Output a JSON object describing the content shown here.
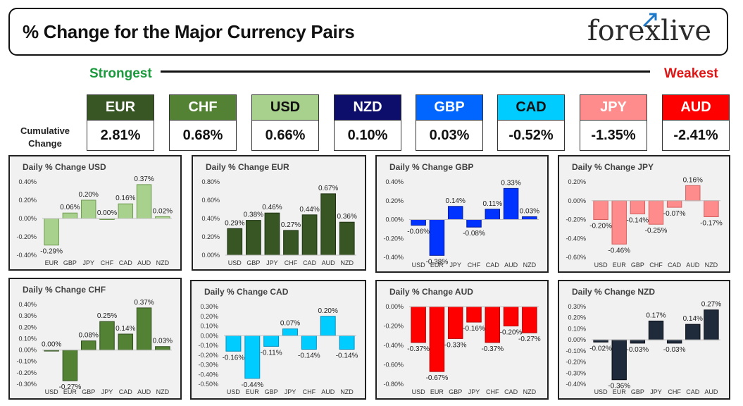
{
  "header": {
    "title": "% Change for the Major Currency Pairs",
    "logo": "forexlive"
  },
  "scale": {
    "strongest": "Strongest",
    "weakest": "Weakest"
  },
  "cumulative": {
    "label_line1": "Cumulative",
    "label_line2": "Change",
    "currencies": [
      {
        "name": "EUR",
        "value": "2.81%",
        "bg": "#375623",
        "fg": "#ffffff"
      },
      {
        "name": "CHF",
        "value": "0.68%",
        "bg": "#548235",
        "fg": "#ffffff"
      },
      {
        "name": "USD",
        "value": "0.66%",
        "bg": "#a9d18e",
        "fg": "#111111"
      },
      {
        "name": "NZD",
        "value": "0.10%",
        "bg": "#0d0d6b",
        "fg": "#ffffff"
      },
      {
        "name": "GBP",
        "value": "0.03%",
        "bg": "#0066ff",
        "fg": "#ffffff"
      },
      {
        "name": "CAD",
        "value": "-0.52%",
        "bg": "#00ccff",
        "fg": "#111111"
      },
      {
        "name": "JPY",
        "value": "-1.35%",
        "bg": "#ff8c8c",
        "fg": "#ffffff"
      },
      {
        "name": "AUD",
        "value": "-2.41%",
        "bg": "#ff0000",
        "fg": "#ffffff"
      }
    ]
  },
  "chart_data": [
    {
      "type": "bar",
      "title": "Daily % Change USD",
      "categories": [
        "EUR",
        "GBP",
        "JPY",
        "CHF",
        "CAD",
        "AUD",
        "NZD"
      ],
      "values": [
        -0.29,
        0.06,
        0.2,
        0.0,
        0.16,
        0.37,
        0.02
      ],
      "labels": [
        "-0.29%",
        "0.06%",
        "0.20%",
        "0.00%",
        "0.16%",
        "0.37%",
        "0.02%"
      ],
      "yticks": [
        0.4,
        0.2,
        0.0,
        -0.2,
        -0.4
      ],
      "ytick_labels": [
        "0.40%",
        "0.20%",
        "0.00%",
        "-0.20%",
        "-0.40%"
      ],
      "ylim": [
        -0.4,
        0.4
      ],
      "color": "#a9d18e",
      "edge": "#6f9a52",
      "grid": false
    },
    {
      "type": "bar",
      "title": "Daily % Change EUR",
      "categories": [
        "USD",
        "GBP",
        "JPY",
        "CHF",
        "CAD",
        "AUD",
        "NZD"
      ],
      "values": [
        0.29,
        0.38,
        0.46,
        0.27,
        0.44,
        0.67,
        0.36
      ],
      "labels": [
        "0.29%",
        "0.38%",
        "0.46%",
        "0.27%",
        "0.44%",
        "0.67%",
        "0.36%"
      ],
      "yticks": [
        0.8,
        0.6,
        0.4,
        0.2,
        0.0
      ],
      "ytick_labels": [
        "0.80%",
        "0.60%",
        "0.40%",
        "0.20%",
        "0.00%"
      ],
      "ylim": [
        0,
        0.8
      ],
      "color": "#375623",
      "edge": "#1e3312",
      "grid": false
    },
    {
      "type": "bar",
      "title": "Daily % Change GBP",
      "categories": [
        "USD",
        "EUR",
        "JPY",
        "CHF",
        "CAD",
        "AUD",
        "NZD"
      ],
      "values": [
        -0.06,
        -0.38,
        0.14,
        -0.08,
        0.11,
        0.33,
        0.03
      ],
      "labels": [
        "-0.06%",
        "-0.38%",
        "0.14%",
        "-0.08%",
        "0.11%",
        "0.33%",
        "0.03%"
      ],
      "yticks": [
        0.4,
        0.2,
        0.0,
        -0.2,
        -0.4
      ],
      "ytick_labels": [
        "0.40%",
        "0.20%",
        "0.00%",
        "-0.20%",
        "-0.40%"
      ],
      "ylim": [
        -0.4,
        0.4
      ],
      "color": "#0033ff",
      "edge": "#001a99",
      "grid": false
    },
    {
      "type": "bar",
      "title": "Daily % Change JPY",
      "categories": [
        "USD",
        "EUR",
        "GBP",
        "CHF",
        "CAD",
        "AUD",
        "NZD"
      ],
      "values": [
        -0.2,
        -0.46,
        -0.14,
        -0.25,
        -0.07,
        0.16,
        -0.17
      ],
      "labels": [
        "-0.20%",
        "-0.46%",
        "-0.14%",
        "-0.25%",
        "-0.07%",
        "0.16%",
        "-0.17%"
      ],
      "yticks": [
        0.2,
        0.0,
        -0.2,
        -0.4,
        -0.6
      ],
      "ytick_labels": [
        "0.20%",
        "0.00%",
        "-0.20%",
        "-0.40%",
        "-0.60%"
      ],
      "ylim": [
        -0.6,
        0.2
      ],
      "color": "#ff8c8c",
      "edge": "#d45f5f",
      "grid": false
    },
    {
      "type": "bar",
      "title": "Daily % Change CHF",
      "categories": [
        "USD",
        "EUR",
        "GBP",
        "JPY",
        "CAD",
        "AUD",
        "NZD"
      ],
      "values": [
        0.0,
        -0.27,
        0.08,
        0.25,
        0.14,
        0.37,
        0.03
      ],
      "labels": [
        "0.00%",
        "-0.27%",
        "0.08%",
        "0.25%",
        "0.14%",
        "0.37%",
        "0.03%"
      ],
      "yticks": [
        0.4,
        0.3,
        0.2,
        0.1,
        0.0,
        -0.1,
        -0.2,
        -0.3
      ],
      "ytick_labels": [
        "0.40%",
        "0.30%",
        "0.20%",
        "0.10%",
        "0.00%",
        "-0.10%",
        "-0.20%",
        "-0.30%"
      ],
      "ylim": [
        -0.3,
        0.4
      ],
      "color": "#548235",
      "edge": "#2f4d1c",
      "grid": false
    },
    {
      "type": "bar",
      "title": "Daily % Change CAD",
      "categories": [
        "USD",
        "EUR",
        "GBP",
        "JPY",
        "CHF",
        "AUD",
        "NZD"
      ],
      "values": [
        -0.16,
        -0.44,
        -0.11,
        0.07,
        -0.14,
        0.2,
        -0.14
      ],
      "labels": [
        "-0.16%",
        "-0.44%",
        "-0.11%",
        "0.07%",
        "-0.14%",
        "0.20%",
        "-0.14%"
      ],
      "yticks": [
        0.3,
        0.2,
        0.1,
        0.0,
        -0.1,
        -0.2,
        -0.3,
        -0.4,
        -0.5
      ],
      "ytick_labels": [
        "0.30%",
        "0.20%",
        "0.10%",
        "0.00%",
        "-0.10%",
        "-0.20%",
        "-0.30%",
        "-0.40%",
        "-0.50%"
      ],
      "ylim": [
        -0.5,
        0.3
      ],
      "color": "#00ccff",
      "edge": "#0090c0",
      "grid": false
    },
    {
      "type": "bar",
      "title": "Daily % Change AUD",
      "categories": [
        "USD",
        "EUR",
        "GBP",
        "JPY",
        "CHF",
        "CAD",
        "NZD"
      ],
      "values": [
        -0.37,
        -0.67,
        -0.33,
        -0.16,
        -0.37,
        -0.2,
        -0.27
      ],
      "labels": [
        "-0.37%",
        "-0.67%",
        "-0.33%",
        "-0.16%",
        "-0.37%",
        "-0.20%",
        "-0.27%"
      ],
      "yticks": [
        0.0,
        -0.2,
        -0.4,
        -0.6,
        -0.8
      ],
      "ytick_labels": [
        "0.00%",
        "-0.20%",
        "-0.40%",
        "-0.60%",
        "-0.80%"
      ],
      "ylim": [
        -0.8,
        0
      ],
      "color": "#ff0000",
      "edge": "#b00000",
      "grid": false
    },
    {
      "type": "bar",
      "title": "Daily % Change NZD",
      "categories": [
        "USD",
        "EUR",
        "GBP",
        "JPY",
        "CHF",
        "CAD",
        "AUD"
      ],
      "values": [
        -0.02,
        -0.36,
        -0.03,
        0.17,
        -0.03,
        0.14,
        0.27
      ],
      "labels": [
        "-0.02%",
        "-0.36%",
        "-0.03%",
        "0.17%",
        "-0.03%",
        "0.14%",
        "0.27%"
      ],
      "yticks": [
        0.3,
        0.2,
        0.1,
        0.0,
        -0.1,
        -0.2,
        -0.3,
        -0.4
      ],
      "ytick_labels": [
        "0.30%",
        "0.20%",
        "0.10%",
        "0.00%",
        "-0.10%",
        "-0.20%",
        "-0.30%",
        "-0.40%"
      ],
      "ylim": [
        -0.4,
        0.3
      ],
      "color": "#1f2a3a",
      "edge": "#0a0f18",
      "grid": false
    }
  ]
}
